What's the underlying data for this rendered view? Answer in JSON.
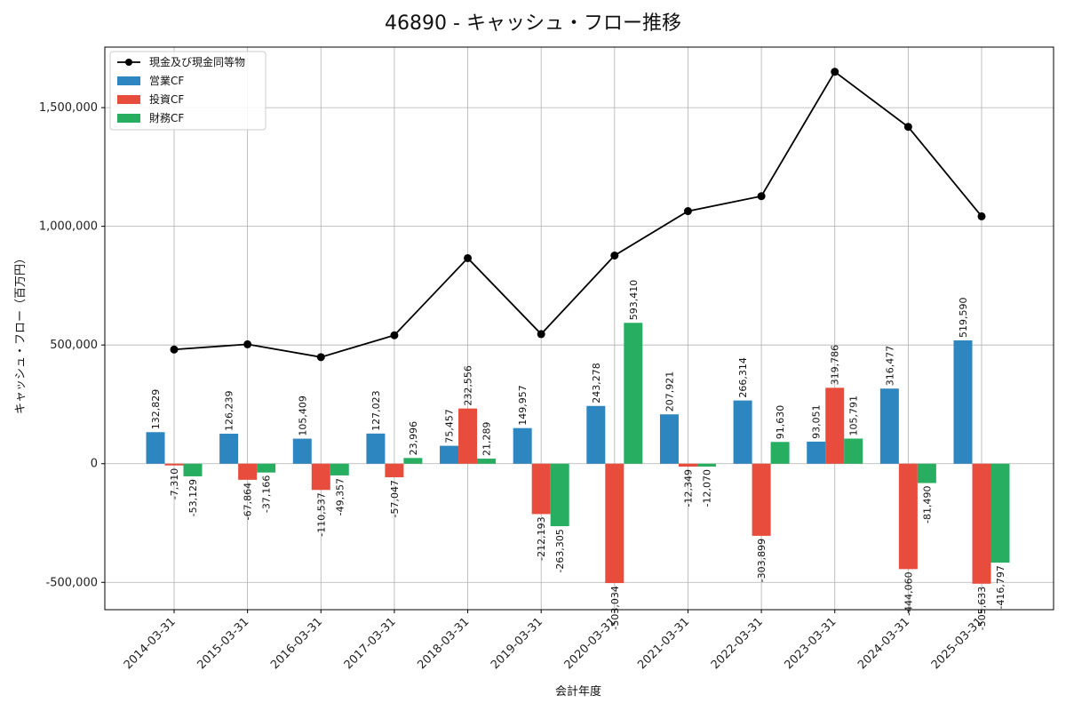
{
  "chart_data": {
    "type": "bar",
    "title": "46890 - キャッシュ・フロー推移",
    "xlabel": "会計年度",
    "ylabel": "キャッシュ・フロー（百万円）",
    "ylim": [
      -615000,
      1755000
    ],
    "yticks": [
      -500000,
      0,
      500000,
      1000000,
      1500000
    ],
    "ytick_labels": [
      "-500,000",
      "0",
      "500,000",
      "1,000,000",
      "1,500,000"
    ],
    "grid": true,
    "legend_position": "top-left",
    "categories": [
      "2014-03-31",
      "2015-03-31",
      "2016-03-31",
      "2017-03-31",
      "2018-03-31",
      "2019-03-31",
      "2020-03-31",
      "2021-03-31",
      "2022-03-31",
      "2023-03-31",
      "2024-03-31",
      "2025-03-31"
    ],
    "series": [
      {
        "name": "営業CF",
        "kind": "bar",
        "color": "#2e86c1",
        "values": [
          132829,
          126239,
          105409,
          127023,
          75457,
          149957,
          243278,
          207921,
          266314,
          93051,
          316477,
          519590
        ],
        "labels": [
          "132,829",
          "126,239",
          "105,409",
          "127,023",
          "75,457",
          "149,957",
          "243,278",
          "207,921",
          "266,314",
          "93,051",
          "316,477",
          "519,590"
        ]
      },
      {
        "name": "投資CF",
        "kind": "bar",
        "color": "#e74c3c",
        "values": [
          -7310,
          -67864,
          -110537,
          -57047,
          232556,
          -212193,
          -503034,
          -12349,
          -303899,
          319786,
          -444060,
          -505633
        ],
        "labels": [
          "-7,310",
          "-67,864",
          "-110,537",
          "-57,047",
          "232,556",
          "-212,193",
          "-503,034",
          "-12,349",
          "-303,899",
          "319,786",
          "-444,060",
          "-505,633"
        ]
      },
      {
        "name": "財務CF",
        "kind": "bar",
        "color": "#27ae60",
        "values": [
          -53129,
          -37166,
          -49357,
          23996,
          21289,
          -263305,
          593410,
          -12070,
          91630,
          105791,
          -81490,
          -416797
        ],
        "labels": [
          "-53,129",
          "-37,166",
          "-49,357",
          "23,996",
          "21,289",
          "-263,305",
          "593,410",
          "-12,070",
          "91,630",
          "105,791",
          "-81,490",
          "-416,797"
        ]
      },
      {
        "name": "現金及び現金同等物",
        "kind": "line",
        "color": "#000000",
        "values": [
          481000,
          503000,
          449000,
          541000,
          866000,
          546000,
          877000,
          1064000,
          1127000,
          1651000,
          1419000,
          1042000
        ]
      }
    ]
  }
}
